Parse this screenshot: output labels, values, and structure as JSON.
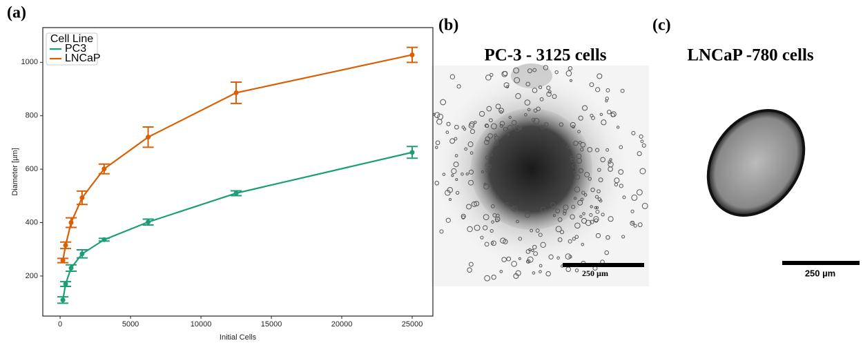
{
  "chart_data": {
    "type": "line",
    "x_label": "Initial Cells",
    "y_label": "Diameter [µm]",
    "x": [
      195,
      390,
      780,
      1560,
      3125,
      6250,
      12500,
      25000
    ],
    "series": [
      {
        "name": "PC3",
        "color": "#1b9e77",
        "values": [
          110,
          170,
          230,
          283,
          336,
          402,
          510,
          663
        ],
        "errors": [
          12,
          9,
          12,
          15,
          5,
          11,
          9,
          22
        ]
      },
      {
        "name": "LNCaP",
        "color": "#d95f02",
        "values": [
          258,
          315,
          400,
          493,
          601,
          720,
          886,
          1028
        ],
        "errors": [
          8,
          12,
          18,
          25,
          18,
          38,
          40,
          28
        ]
      }
    ],
    "xlim": [
      -1230,
      26470
    ],
    "ylim": [
      50,
      1130
    ],
    "xticks": [
      0,
      5000,
      10000,
      15000,
      20000,
      25000
    ],
    "yticks": [
      200,
      400,
      600,
      800,
      1000
    ],
    "legend_title": "Cell Line",
    "legend": "upper left"
  },
  "panels": {
    "a": "(a)",
    "b": "(b)",
    "c": "(c)",
    "b_title": "PC-3 - 3125 cells",
    "c_title": "LNCaP -780 cells",
    "b_scale": "250 µm",
    "c_scale": "250 µm"
  }
}
